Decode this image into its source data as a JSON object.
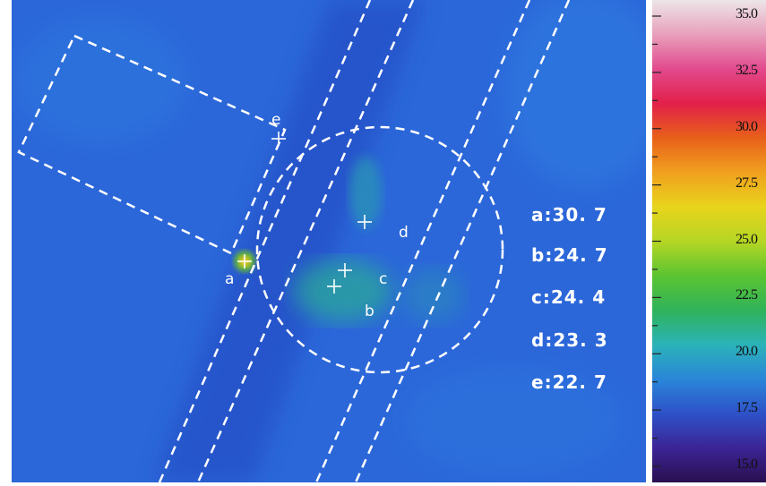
{
  "image": {
    "kind": "thermal-infrared-photo",
    "palette": "rainbow"
  },
  "points": [
    {
      "id": "a",
      "label": "a"
    },
    {
      "id": "b",
      "label": "b"
    },
    {
      "id": "c",
      "label": "c"
    },
    {
      "id": "d",
      "label": "d"
    },
    {
      "id": "e",
      "label": "e"
    }
  ],
  "readouts": [
    {
      "id": "a",
      "text": "a:30. 7",
      "value": 30.7
    },
    {
      "id": "b",
      "text": "b:24. 7",
      "value": 24.7
    },
    {
      "id": "c",
      "text": "c:24. 4",
      "value": 24.4
    },
    {
      "id": "d",
      "text": "d:23. 3",
      "value": 23.3
    },
    {
      "id": "e",
      "text": "e:22. 7",
      "value": 22.7
    }
  ],
  "scale": {
    "min": 15.0,
    "max": 35.0,
    "ticks": [
      "35.0",
      "32.5",
      "30.0",
      "27.5",
      "25.0",
      "22.5",
      "20.0",
      "17.5",
      "15.0"
    ],
    "colors": [
      "#2a0f4f",
      "#3c2496",
      "#2e52c8",
      "#2a86d8",
      "#2bb3b8",
      "#30b35a",
      "#5cc431",
      "#b6d624",
      "#e8d41c",
      "#f0a01e",
      "#e8601a",
      "#e2204a",
      "#e24a8e",
      "#e8a0bc",
      "#ece6e8"
    ]
  }
}
